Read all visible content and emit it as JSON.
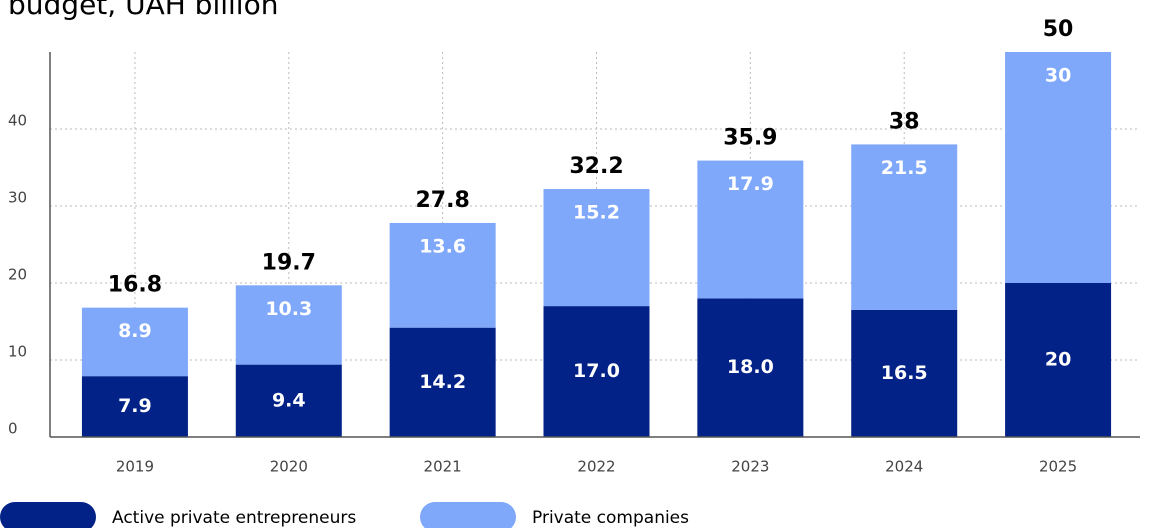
{
  "chart_data": {
    "type": "bar",
    "stacked": true,
    "title": "budget, UAH billion",
    "categories": [
      "2019",
      "2020",
      "2021",
      "2022",
      "2023",
      "2024",
      "2025"
    ],
    "series": [
      {
        "name": "Active private entrepreneurs",
        "color": "#032287",
        "values": [
          7.9,
          9.4,
          14.2,
          17,
          18,
          16.5,
          20
        ],
        "value_labels": [
          "7.9",
          "9.4",
          "14.2",
          "17.0",
          "18.0",
          "16.5",
          "20"
        ]
      },
      {
        "name": "Private companies",
        "color": "#7fa8fb",
        "values": [
          8.9,
          10.3,
          13.6,
          15.2,
          17.9,
          21.5,
          30
        ]
      }
    ],
    "totals": [
      16.8,
      19.7,
      27.8,
      32.2,
      35.9,
      38,
      50
    ],
    "ylim": [
      0,
      50
    ],
    "yticks": [
      0,
      10,
      20,
      30,
      40
    ],
    "grid": true
  }
}
